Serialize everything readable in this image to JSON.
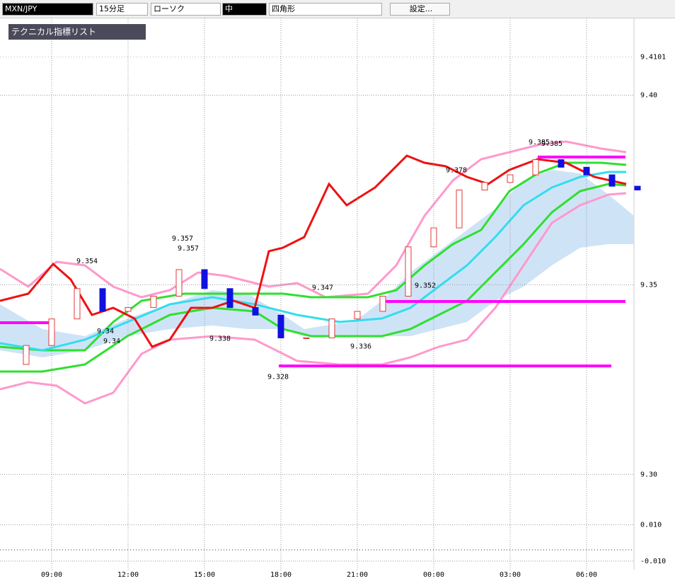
{
  "toolbar": {
    "symbol": "MXN/JPY",
    "timeframe": "15分足",
    "chart_style": "ローソク",
    "width": "中",
    "shape": "四角形",
    "settings": "設定..."
  },
  "panel": {
    "title": "テクニカル指標リスト"
  },
  "chart_data": {
    "type": "candlestick",
    "categories": [
      null,
      null,
      "09:00",
      null,
      null,
      "12:00",
      null,
      null,
      "15:00",
      null,
      null,
      "18:00",
      null,
      null,
      "21:00",
      null,
      null,
      "00:00",
      null,
      null,
      "03:00",
      null,
      null,
      "06:00",
      null,
      null
    ],
    "close": [
      9.329,
      9.334,
      9.341,
      9.349,
      9.343,
      9.344,
      9.347,
      9.354,
      9.349,
      9.344,
      9.342,
      9.336,
      9.336,
      9.341,
      9.343,
      9.347,
      9.36,
      9.365,
      9.375,
      9.377,
      9.379,
      9.383,
      9.381,
      9.379,
      9.376,
      9.375
    ],
    "up_color": "#e23a3a",
    "down_color": "#1010e0",
    "ylim": [
      9.287,
      9.421
    ],
    "yticks": [
      {
        "value": 9.4,
        "label": "9.40"
      },
      9.35,
      {
        "value": 9.3,
        "label": "9.30"
      }
    ],
    "current_price": 9.4101,
    "annotations": [
      9.354,
      9.34,
      9.34,
      9.357,
      9.357,
      9.338,
      9.328,
      9.347,
      9.336,
      9.352,
      9.378,
      9.385,
      9.385
    ],
    "levels": [
      9.3837,
      9.3456,
      9.3286,
      9.34
    ],
    "level_color": "#ff00ff",
    "sub_ylim": [
      -0.0155,
      0.0125
    ],
    "sub_yticks": [
      {
        "value": 0.01,
        "label": "0.010"
      },
      {
        "value": -0.01,
        "label": "-0.010"
      }
    ]
  }
}
